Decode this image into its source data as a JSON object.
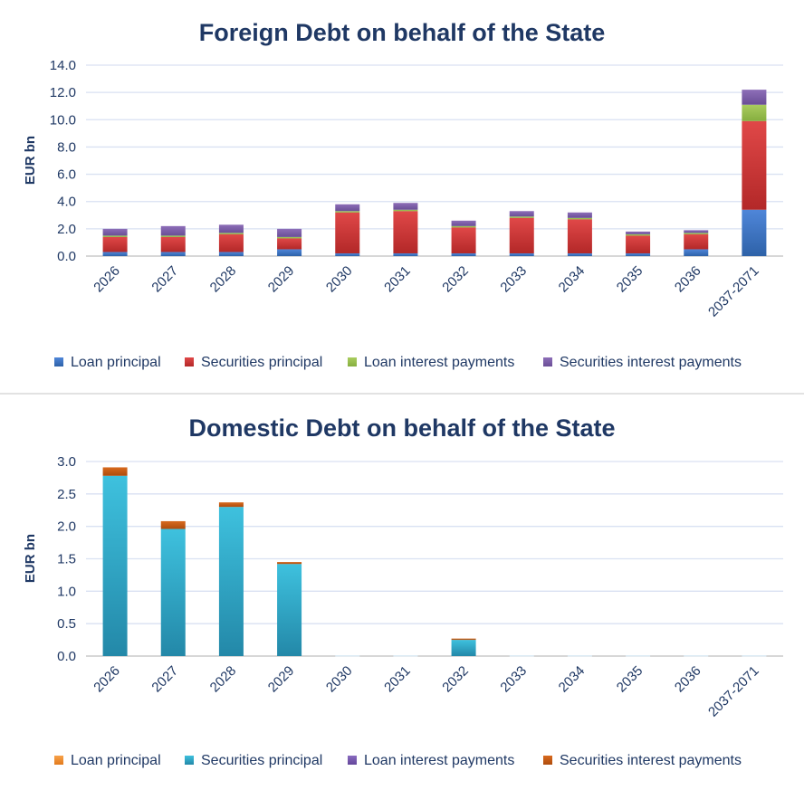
{
  "chart_data": [
    {
      "type": "bar",
      "stacked": true,
      "title": "Foreign Debt on behalf of the State",
      "ylabel": "EUR bn",
      "ylim": [
        0,
        14
      ],
      "yticks": [
        "0.0",
        "2.0",
        "4.0",
        "6.0",
        "8.0",
        "10.0",
        "12.0",
        "14.0"
      ],
      "grid": true,
      "legend_position": "bottom",
      "categories": [
        "2026",
        "2027",
        "2028",
        "2029",
        "2030",
        "2031",
        "2032",
        "2033",
        "2034",
        "2035",
        "2036",
        "2037-2071"
      ],
      "series": [
        {
          "name": "Loan principal",
          "color": "#4472C4",
          "values": [
            0.3,
            0.3,
            0.3,
            0.5,
            0.2,
            0.2,
            0.2,
            0.2,
            0.2,
            0.2,
            0.5,
            3.4
          ]
        },
        {
          "name": "Securities principal",
          "color": "#E03C3C",
          "values": [
            1.1,
            1.1,
            1.3,
            0.8,
            3.0,
            3.1,
            1.9,
            2.6,
            2.5,
            1.3,
            1.1,
            6.5
          ]
        },
        {
          "name": "Loan interest payments",
          "color": "#9BBB59",
          "values": [
            0.1,
            0.1,
            0.1,
            0.1,
            0.1,
            0.1,
            0.1,
            0.1,
            0.1,
            0.1,
            0.1,
            1.2
          ]
        },
        {
          "name": "Securities interest payments",
          "color": "#8064A2",
          "values": [
            0.5,
            0.7,
            0.6,
            0.6,
            0.5,
            0.5,
            0.4,
            0.4,
            0.4,
            0.2,
            0.2,
            1.1
          ]
        }
      ]
    },
    {
      "type": "bar",
      "stacked": true,
      "title": "Domestic Debt on behalf of the State",
      "ylabel": "EUR bn",
      "ylim": [
        0,
        3
      ],
      "yticks": [
        "0.0",
        "0.5",
        "1.0",
        "1.5",
        "2.0",
        "2.5",
        "3.0"
      ],
      "grid": true,
      "legend_position": "bottom",
      "categories": [
        "2026",
        "2027",
        "2028",
        "2029",
        "2030",
        "2031",
        "2032",
        "2033",
        "2034",
        "2035",
        "2036",
        "2037-2071"
      ],
      "series": [
        {
          "name": "Loan principal",
          "color": "#F79646",
          "values": [
            0,
            0,
            0,
            0,
            0,
            0,
            0,
            0,
            0,
            0,
            0,
            0
          ]
        },
        {
          "name": "Securities principal",
          "color": "#31B4D1",
          "values": [
            2.78,
            1.96,
            2.3,
            1.42,
            0,
            0,
            0.25,
            0,
            0,
            0,
            0,
            0
          ]
        },
        {
          "name": "Loan interest payments",
          "color": "#7F5FB0",
          "values": [
            0,
            0,
            0,
            0,
            0,
            0,
            0,
            0,
            0,
            0,
            0,
            0
          ]
        },
        {
          "name": "Securities interest payments",
          "color": "#C55A11",
          "values": [
            0.13,
            0.12,
            0.07,
            0.03,
            0,
            0,
            0.02,
            0,
            0,
            0,
            0,
            0
          ]
        }
      ]
    }
  ]
}
